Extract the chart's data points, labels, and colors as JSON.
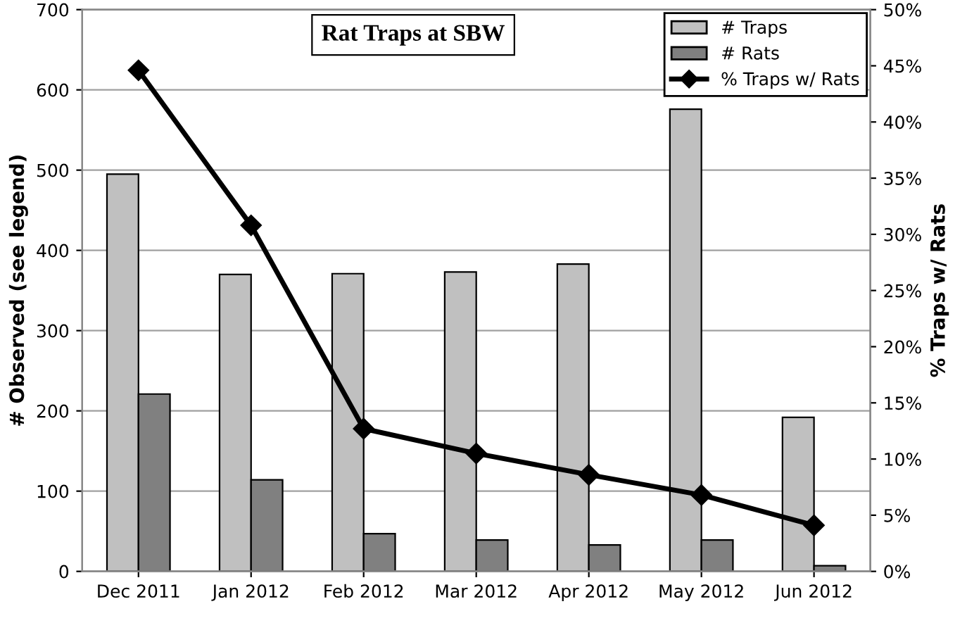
{
  "chart_data": {
    "type": "bar",
    "title": "Rat Traps at SBW",
    "ylabel": "# Observed (see legend)",
    "y2label": "% Traps w/ Rats",
    "categories": [
      "Dec 2011",
      "Jan 2012",
      "Feb 2012",
      "Mar 2012",
      "Apr 2012",
      "May 2012",
      "Jun 2012"
    ],
    "series": [
      {
        "name": "# Traps",
        "color": "#c0c0c0",
        "values": [
          495,
          370,
          371,
          373,
          383,
          576,
          192
        ]
      },
      {
        "name": "# Rats",
        "color": "#808080",
        "values": [
          221,
          114,
          47,
          39,
          33,
          39,
          7
        ]
      },
      {
        "name": "% Traps w/ Rats",
        "type": "line",
        "axis": "y2",
        "color": "#000000",
        "marker": "diamond",
        "values": [
          44.6,
          30.8,
          12.7,
          10.5,
          8.6,
          6.8,
          4.1
        ]
      }
    ],
    "ylim": [
      0,
      700
    ],
    "yticks": [
      0,
      100,
      200,
      300,
      400,
      500,
      600,
      700
    ],
    "y2lim": [
      0,
      50
    ],
    "y2ticks": [
      {
        "value": 0,
        "label": "0%"
      },
      {
        "value": 5,
        "label": "5%"
      },
      {
        "value": 10,
        "label": "10%"
      },
      {
        "value": 15,
        "label": "15%"
      },
      {
        "value": 20,
        "label": "20%"
      },
      {
        "value": 25,
        "label": "25%"
      },
      {
        "value": 30,
        "label": "30%"
      },
      {
        "value": 35,
        "label": "35%"
      },
      {
        "value": 40,
        "label": "40%"
      },
      {
        "value": 45,
        "label": "45%"
      },
      {
        "value": 50,
        "label": "50%"
      }
    ],
    "grid": "y",
    "legend": "top right"
  }
}
